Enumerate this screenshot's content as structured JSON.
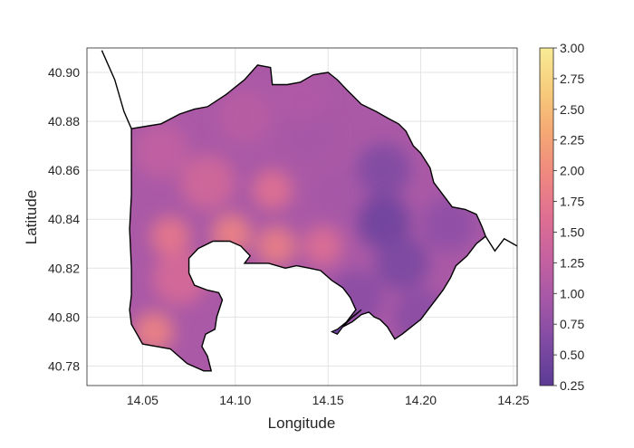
{
  "chart_data": {
    "type": "heatmap",
    "title": "",
    "xlabel": "Longitude",
    "ylabel": "Latitude",
    "xlim": [
      14.02,
      14.252
    ],
    "ylim": [
      40.772,
      40.91
    ],
    "x_ticks": [
      "14.05",
      "14.10",
      "14.15",
      "14.20",
      "14.25"
    ],
    "y_ticks": [
      "40.78",
      "40.80",
      "40.82",
      "40.84",
      "40.86",
      "40.88",
      "40.90"
    ],
    "grid": true,
    "colorbar": {
      "range": [
        0.25,
        3.0
      ],
      "ticks": [
        "3.00",
        "2.75",
        "2.50",
        "2.25",
        "2.00",
        "1.75",
        "1.50",
        "1.25",
        "1.00",
        "0.75",
        "0.50",
        "0.25"
      ],
      "colormap": [
        "#5b3b94",
        "#7e4aa3",
        "#a457a7",
        "#c561a0",
        "#df6f92",
        "#ef8880",
        "#f5a874",
        "#f7cc7b",
        "#f8ec96"
      ]
    },
    "hotspots": [
      {
        "lon": 14.056,
        "lat": 40.794,
        "value": 1.9
      },
      {
        "lon": 14.098,
        "lat": 40.834,
        "value": 1.9
      },
      {
        "lon": 14.122,
        "lat": 40.829,
        "value": 1.85
      },
      {
        "lon": 14.065,
        "lat": 40.833,
        "value": 1.75
      },
      {
        "lon": 14.07,
        "lat": 40.816,
        "value": 1.5
      },
      {
        "lon": 14.147,
        "lat": 40.829,
        "value": 1.6
      },
      {
        "lon": 14.12,
        "lat": 40.852,
        "value": 1.65
      },
      {
        "lon": 14.085,
        "lat": 40.855,
        "value": 1.45
      },
      {
        "lon": 14.06,
        "lat": 40.868,
        "value": 1.25
      },
      {
        "lon": 14.105,
        "lat": 40.882,
        "value": 1.15
      },
      {
        "lon": 14.14,
        "lat": 40.875,
        "value": 0.95
      },
      {
        "lon": 14.18,
        "lat": 40.839,
        "value": 0.45
      },
      {
        "lon": 14.19,
        "lat": 40.822,
        "value": 0.55
      },
      {
        "lon": 14.18,
        "lat": 40.86,
        "value": 0.6
      },
      {
        "lon": 14.215,
        "lat": 40.838,
        "value": 0.75
      },
      {
        "lon": 14.2,
        "lat": 40.8,
        "value": 0.7
      },
      {
        "lon": 14.165,
        "lat": 40.808,
        "value": 0.7
      },
      {
        "lon": 14.135,
        "lat": 40.89,
        "value": 1.05
      },
      {
        "lon": 14.155,
        "lat": 40.85,
        "value": 0.95
      }
    ],
    "boundary": [
      [
        14.044,
        40.877
      ],
      [
        14.052,
        40.878
      ],
      [
        14.06,
        40.879
      ],
      [
        14.07,
        40.883
      ],
      [
        14.078,
        40.885
      ],
      [
        14.085,
        40.886
      ],
      [
        14.095,
        40.891
      ],
      [
        14.105,
        40.897
      ],
      [
        14.112,
        40.903
      ],
      [
        14.119,
        40.902
      ],
      [
        14.12,
        40.895
      ],
      [
        14.128,
        40.895
      ],
      [
        14.135,
        40.896
      ],
      [
        14.142,
        40.899
      ],
      [
        14.15,
        40.9
      ],
      [
        14.155,
        40.897
      ],
      [
        14.16,
        40.893
      ],
      [
        14.168,
        40.887
      ],
      [
        14.176,
        40.884
      ],
      [
        14.183,
        40.881
      ],
      [
        14.188,
        40.879
      ],
      [
        14.192,
        40.876
      ],
      [
        14.196,
        40.87
      ],
      [
        14.2,
        40.867
      ],
      [
        14.205,
        40.861
      ],
      [
        14.207,
        40.855
      ],
      [
        14.212,
        40.85
      ],
      [
        14.217,
        40.845
      ],
      [
        14.224,
        40.844
      ],
      [
        14.23,
        40.842
      ],
      [
        14.233,
        40.837
      ],
      [
        14.235,
        40.833
      ],
      [
        14.23,
        40.83
      ],
      [
        14.225,
        40.825
      ],
      [
        14.219,
        40.821
      ],
      [
        14.216,
        40.816
      ],
      [
        14.212,
        40.811
      ],
      [
        14.208,
        40.807
      ],
      [
        14.204,
        40.803
      ],
      [
        14.2,
        40.799
      ],
      [
        14.195,
        40.796
      ],
      [
        14.19,
        40.793
      ],
      [
        14.186,
        40.791
      ],
      [
        14.182,
        40.796
      ],
      [
        14.178,
        40.799
      ],
      [
        14.175,
        40.8
      ],
      [
        14.172,
        40.802
      ],
      [
        14.168,
        40.801
      ],
      [
        14.163,
        40.798
      ],
      [
        14.158,
        40.796
      ],
      [
        14.162,
        40.8
      ],
      [
        14.165,
        40.803
      ],
      [
        14.162,
        40.808
      ],
      [
        14.158,
        40.812
      ],
      [
        14.152,
        40.815
      ],
      [
        14.146,
        40.819
      ],
      [
        14.14,
        40.82
      ],
      [
        14.133,
        40.821
      ],
      [
        14.127,
        40.82
      ],
      [
        14.118,
        40.822
      ],
      [
        14.11,
        40.822
      ],
      [
        14.105,
        40.822
      ],
      [
        14.108,
        40.825
      ],
      [
        14.103,
        40.829
      ],
      [
        14.097,
        40.831
      ],
      [
        14.088,
        40.831
      ],
      [
        14.08,
        40.828
      ],
      [
        14.075,
        40.824
      ],
      [
        14.075,
        40.818
      ],
      [
        14.078,
        40.813
      ],
      [
        14.085,
        40.811
      ],
      [
        14.091,
        40.81
      ],
      [
        14.093,
        40.807
      ],
      [
        14.09,
        40.8
      ],
      [
        14.089,
        40.795
      ],
      [
        14.084,
        40.793
      ],
      [
        14.082,
        40.788
      ],
      [
        14.085,
        40.784
      ],
      [
        14.087,
        40.778
      ],
      [
        14.083,
        40.778
      ],
      [
        14.074,
        40.781
      ],
      [
        14.065,
        40.787
      ],
      [
        14.05,
        40.789
      ],
      [
        14.047,
        40.793
      ],
      [
        14.044,
        40.797
      ],
      [
        14.043,
        40.803
      ],
      [
        14.044,
        40.809
      ],
      [
        14.044,
        40.82
      ],
      [
        14.043,
        40.836
      ],
      [
        14.044,
        40.85
      ],
      [
        14.044,
        40.877
      ]
    ],
    "islet": [
      [
        14.158,
        40.796
      ],
      [
        14.163,
        40.8
      ],
      [
        14.168,
        40.803
      ],
      [
        14.165,
        40.801
      ],
      [
        14.16,
        40.798
      ],
      [
        14.155,
        40.795
      ],
      [
        14.152,
        40.794
      ],
      [
        14.155,
        40.793
      ],
      [
        14.158,
        40.796
      ]
    ],
    "coast_line": [
      [
        14.028,
        40.909
      ],
      [
        14.035,
        40.897
      ],
      [
        14.04,
        40.884
      ],
      [
        14.044,
        40.877
      ]
    ],
    "coast_east": [
      [
        14.235,
        40.833
      ],
      [
        14.24,
        40.827
      ],
      [
        14.245,
        40.832
      ],
      [
        14.252,
        40.829
      ]
    ]
  }
}
